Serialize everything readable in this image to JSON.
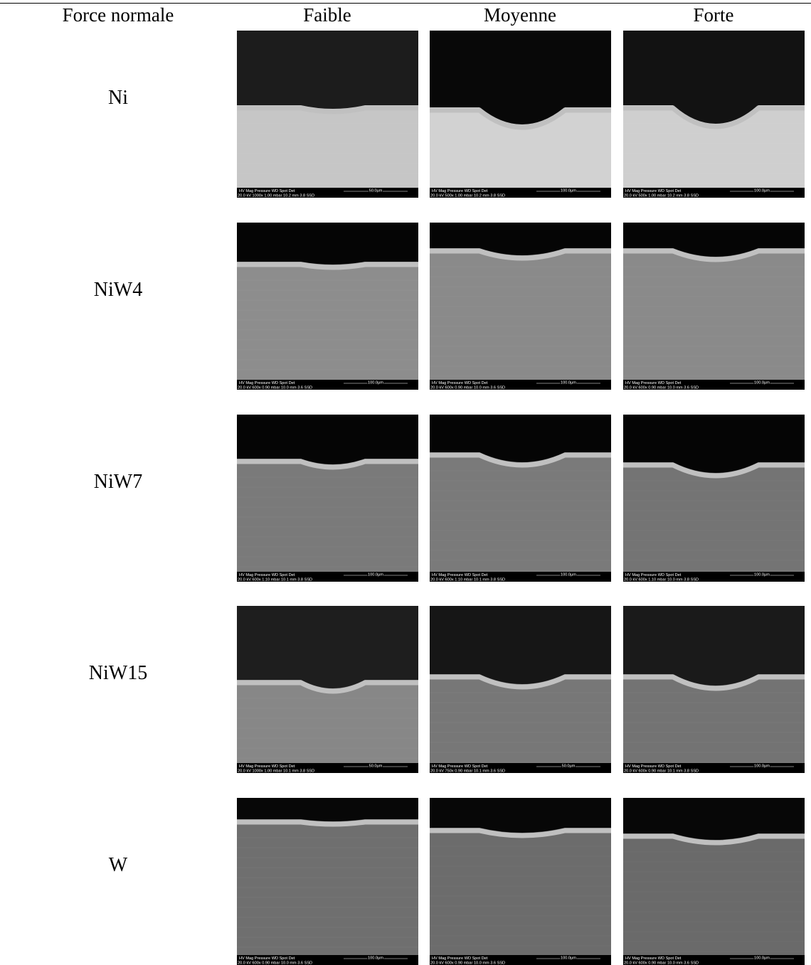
{
  "header": {
    "row_label": "Force normale",
    "columns": [
      "Faible",
      "Moyenne",
      "Forte"
    ]
  },
  "image_header_labels": "HV  Mag  Pressure  WD  Spot  Det",
  "rows": [
    {
      "label": "Ni",
      "images": [
        {
          "info": "20.0 kV 1000x 1.00 mbar 10.2 mm 3.8 SSD",
          "scale": "50.0µm"
        },
        {
          "info": "20.0 kV 500x 1.00 mbar 10.2 mm 3.8 SSD",
          "scale": "100.0µm"
        },
        {
          "info": "20.0 kV 500x 1.00 mbar 10.2 mm 3.8 SSD",
          "scale": "100.0µm"
        }
      ]
    },
    {
      "label": "NiW4",
      "images": [
        {
          "info": "20.0 kV 600x 0.90 mbar 10.0 mm 3.6 SSD",
          "scale": "100.0µm"
        },
        {
          "info": "20.0 kV 600x 0.90 mbar 10.0 mm 3.6 SSD",
          "scale": "100.0µm"
        },
        {
          "info": "20.0 kV 600x 0.90 mbar 10.0 mm 3.6 SSD",
          "scale": "100.0µm"
        }
      ]
    },
    {
      "label": "NiW7",
      "images": [
        {
          "info": "20.0 kV 600x 1.10 mbar 10.1 mm 3.8 SSD",
          "scale": "100.0µm"
        },
        {
          "info": "20.0 kV 600x 1.10 mbar 10.1 mm 3.8 SSD",
          "scale": "100.0µm"
        },
        {
          "info": "20.0 kV 600x 1.10 mbar 10.0 mm 3.8 SSD",
          "scale": "100.0µm"
        }
      ]
    },
    {
      "label": "NiW15",
      "images": [
        {
          "info": "20.0 kV 1000x 1.00 mbar 10.1 mm 3.8 SSD",
          "scale": "50.0µm"
        },
        {
          "info": "20.0 kV 750x 0.90 mbar 10.1 mm 3.6 SSD",
          "scale": "50.0µm"
        },
        {
          "info": "20.0 kV 600x 0.90 mbar 10.1 mm 3.8 SSD",
          "scale": "100.0µm"
        }
      ]
    },
    {
      "label": "W",
      "images": [
        {
          "info": "20.0 kV 600x 0.90 mbar 10.0 mm 3.6 SSD",
          "scale": "100.0µm"
        },
        {
          "info": "20.0 kV 600x 0.90 mbar 10.0 mm 3.6 SSD",
          "scale": "100.0µm"
        },
        {
          "info": "20.0 kV 600x 0.90 mbar 10.0 mm 3.6 SSD",
          "scale": "100.0µm"
        }
      ]
    }
  ]
}
